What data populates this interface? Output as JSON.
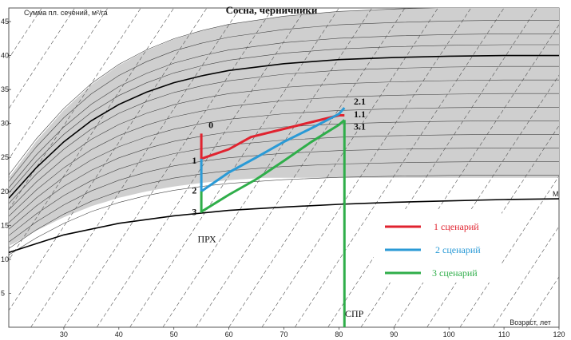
{
  "chart_data": {
    "type": "line",
    "title": "Сосна, черничники",
    "xlabel": "Возраст, лет",
    "ylabel": "Сумма пл. сечений, м²/га",
    "xlim": [
      20,
      120
    ],
    "ylim": [
      0,
      47
    ],
    "x_ticks": [
      30,
      40,
      50,
      60,
      70,
      80,
      90,
      100,
      110,
      120
    ],
    "y_ticks": [
      5,
      10,
      15,
      20,
      25,
      30,
      35,
      40,
      45
    ],
    "grid": false,
    "band_colors": {
      "upper_zone": "#cfcfcf",
      "lower_zone": "#ffffff"
    },
    "reference_curves": {
      "upper_mean": {
        "points": [
          [
            20,
            19
          ],
          [
            25,
            23.5
          ],
          [
            30,
            27.3
          ],
          [
            35,
            30.4
          ],
          [
            40,
            32.8
          ],
          [
            45,
            34.6
          ],
          [
            50,
            36
          ],
          [
            55,
            37
          ],
          [
            60,
            37.8
          ],
          [
            70,
            38.8
          ],
          [
            80,
            39.4
          ],
          [
            90,
            39.7
          ],
          [
            100,
            39.9
          ],
          [
            110,
            40
          ],
          [
            120,
            40
          ]
        ]
      },
      "lower_boundary": {
        "label": "М",
        "points": [
          [
            20,
            11
          ],
          [
            25,
            12.3
          ],
          [
            30,
            13.6
          ],
          [
            40,
            15.3
          ],
          [
            50,
            16.4
          ],
          [
            55,
            16.8
          ],
          [
            60,
            17.2
          ],
          [
            70,
            17.7
          ],
          [
            80,
            18.1
          ],
          [
            90,
            18.4
          ],
          [
            100,
            18.6
          ],
          [
            110,
            18.8
          ],
          [
            120,
            18.9
          ]
        ]
      }
    },
    "series": [
      {
        "name": "1 сценарий",
        "color": "#e0232f",
        "points": [
          [
            55,
            28.5
          ],
          [
            55,
            24.8
          ],
          [
            60,
            26.2
          ],
          [
            64,
            28
          ],
          [
            70,
            29.2
          ],
          [
            75,
            30.2
          ],
          [
            80,
            31.2
          ],
          [
            81,
            31.2
          ]
        ]
      },
      {
        "name": "2 сценарий",
        "color": "#2a9ad6",
        "points": [
          [
            55,
            24.8
          ],
          [
            55,
            20
          ],
          [
            60,
            22.8
          ],
          [
            65,
            25
          ],
          [
            70,
            27.3
          ],
          [
            75,
            29.3
          ],
          [
            80,
            31.4
          ],
          [
            81,
            32.3
          ]
        ]
      },
      {
        "name": "3 сценарий",
        "color": "#2fae4a",
        "points": [
          [
            55,
            20
          ],
          [
            55,
            17
          ],
          [
            60,
            19.5
          ],
          [
            65,
            21.8
          ],
          [
            70,
            24.5
          ],
          [
            75,
            27.3
          ],
          [
            80,
            29.8
          ],
          [
            81,
            30.5
          ]
        ]
      }
    ],
    "point_labels": [
      {
        "text": "0",
        "x": 56.3,
        "y": 29.3,
        "bold": true
      },
      {
        "text": "1",
        "x": 53.3,
        "y": 24.1,
        "bold": true
      },
      {
        "text": "2",
        "x": 53.3,
        "y": 19.7,
        "bold": true
      },
      {
        "text": "3",
        "x": 53.3,
        "y": 16.5,
        "bold": true
      },
      {
        "text": "2.1",
        "x": 82.7,
        "y": 32.8,
        "bold": true
      },
      {
        "text": "1.1",
        "x": 82.7,
        "y": 30.9,
        "bold": true
      },
      {
        "text": "3.1",
        "x": 82.7,
        "y": 29.1,
        "bold": true
      }
    ],
    "annotations": [
      {
        "text": "ПРХ",
        "x": 56,
        "y": 12.5
      },
      {
        "text": "СПР",
        "x": 82.8,
        "y": 1.5
      }
    ],
    "vertical_lines": [
      {
        "x": 81,
        "y_from": 0,
        "y_to": 30.5,
        "color": "#2fae4a"
      }
    ],
    "legend": {
      "position": "right",
      "entries": [
        "1 сценарий",
        "2 сценарий",
        "3 сценарий"
      ]
    }
  }
}
